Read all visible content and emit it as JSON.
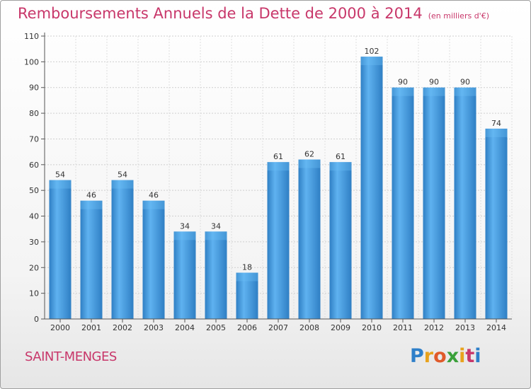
{
  "chart_data": {
    "type": "bar",
    "title": "Remboursements Annuels de la Dette de 2000 à 2014",
    "subtitle": "(en milliers d'€)",
    "categories": [
      "2000",
      "2001",
      "2002",
      "2003",
      "2004",
      "2005",
      "2006",
      "2007",
      "2008",
      "2009",
      "2010",
      "2011",
      "2012",
      "2013",
      "2014"
    ],
    "values": [
      54,
      46,
      54,
      46,
      34,
      34,
      18,
      61,
      62,
      61,
      102,
      90,
      90,
      90,
      74
    ],
    "yticks": [
      0,
      10,
      20,
      30,
      40,
      50,
      60,
      70,
      80,
      90,
      100,
      110
    ],
    "ylim": [
      0,
      110
    ],
    "xlabel": "",
    "ylabel": "",
    "grid": true,
    "bar_color": "#3a8fd4"
  },
  "footer": {
    "city": "SAINT-MENGES",
    "logo_letters": [
      "P",
      "r",
      "o",
      "x",
      "i",
      "t",
      "i"
    ],
    "logo_colors": [
      "#2e7fc9",
      "#e8a21c",
      "#e05a2a",
      "#3aa03a",
      "#e8a21c",
      "#c8376a",
      "#2e7fc9"
    ]
  }
}
